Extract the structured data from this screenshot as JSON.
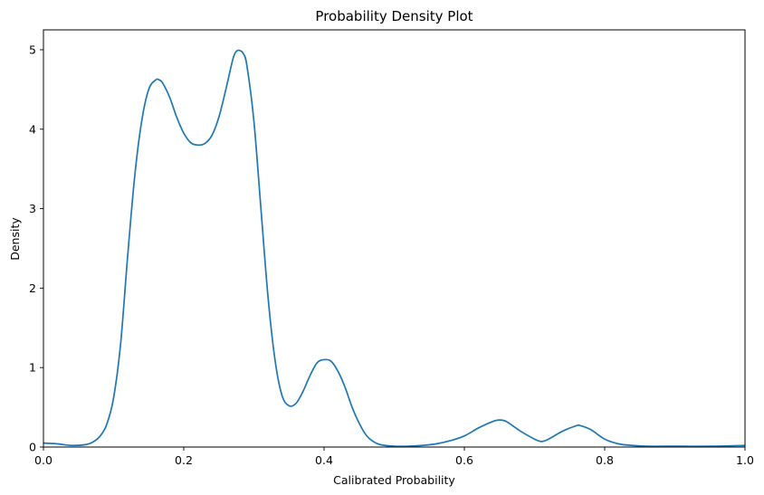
{
  "chart_data": {
    "type": "line",
    "title": "Probability Density Plot",
    "xlabel": "Calibrated Probability",
    "ylabel": "Density",
    "xlim": [
      0,
      1
    ],
    "ylim": [
      0,
      5.25
    ],
    "xticks": [
      0.0,
      0.2,
      0.4,
      0.6,
      0.8,
      1.0
    ],
    "xtick_labels": [
      "0.0",
      "0.2",
      "0.4",
      "0.6",
      "0.8",
      "1.0"
    ],
    "yticks": [
      0,
      1,
      2,
      3,
      4,
      5
    ],
    "ytick_labels": [
      "0",
      "1",
      "2",
      "3",
      "4",
      "5"
    ],
    "grid": false,
    "line_color": "#1f77b4",
    "series": [
      {
        "x": [
          0.0,
          0.02,
          0.04,
          0.06,
          0.07,
          0.08,
          0.09,
          0.1,
          0.11,
          0.12,
          0.13,
          0.14,
          0.15,
          0.16,
          0.165,
          0.17,
          0.18,
          0.19,
          0.2,
          0.21,
          0.22,
          0.23,
          0.24,
          0.25,
          0.26,
          0.27,
          0.275,
          0.28,
          0.285,
          0.29,
          0.3,
          0.31,
          0.32,
          0.33,
          0.34,
          0.35,
          0.36,
          0.37,
          0.38,
          0.39,
          0.4,
          0.41,
          0.42,
          0.43,
          0.44,
          0.45,
          0.46,
          0.47,
          0.48,
          0.5,
          0.52,
          0.54,
          0.56,
          0.58,
          0.6,
          0.62,
          0.64,
          0.65,
          0.66,
          0.68,
          0.7,
          0.71,
          0.72,
          0.74,
          0.76,
          0.765,
          0.78,
          0.8,
          0.82,
          0.84,
          0.86,
          0.9,
          0.95,
          1.0
        ],
        "y": [
          0.05,
          0.04,
          0.02,
          0.03,
          0.06,
          0.13,
          0.28,
          0.62,
          1.3,
          2.4,
          3.4,
          4.1,
          4.5,
          4.62,
          4.62,
          4.58,
          4.4,
          4.15,
          3.95,
          3.83,
          3.8,
          3.82,
          3.92,
          4.15,
          4.5,
          4.88,
          4.98,
          4.99,
          4.95,
          4.8,
          4.1,
          3.0,
          1.9,
          1.1,
          0.65,
          0.52,
          0.55,
          0.7,
          0.9,
          1.06,
          1.1,
          1.08,
          0.95,
          0.75,
          0.5,
          0.3,
          0.15,
          0.07,
          0.03,
          0.01,
          0.01,
          0.02,
          0.04,
          0.08,
          0.14,
          0.24,
          0.32,
          0.34,
          0.32,
          0.2,
          0.1,
          0.07,
          0.1,
          0.2,
          0.27,
          0.27,
          0.22,
          0.1,
          0.04,
          0.02,
          0.01,
          0.01,
          0.01,
          0.02
        ]
      }
    ]
  }
}
